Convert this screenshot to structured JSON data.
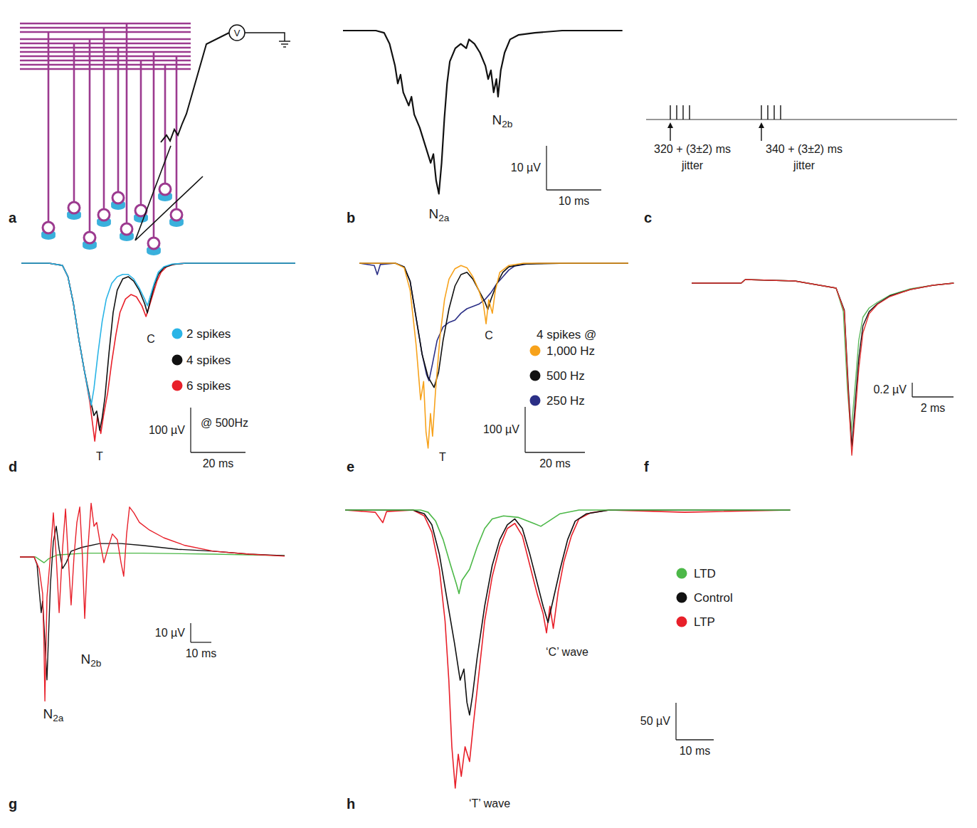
{
  "chart_data": [
    {
      "type": "schematic",
      "panel_label": "a",
      "annotations": [
        "V"
      ]
    },
    {
      "type": "line",
      "panel_label": "b",
      "annotations": [
        "N2a",
        "N2b"
      ],
      "scale_bars": {
        "y": {
          "value": 10,
          "label": "10 µV"
        },
        "x": {
          "value": 10,
          "label": "10 ms"
        }
      },
      "series": [
        {
          "color": "#111111",
          "x": [
            0,
            6,
            7.5,
            8.5,
            9.5,
            10,
            10.5,
            11,
            12,
            12.5,
            13,
            14,
            15,
            16,
            16.5,
            17,
            17.5,
            18,
            18.5,
            19,
            19.5,
            20.5,
            21.5,
            22.5,
            23,
            24,
            25,
            26,
            26.5,
            27,
            27.5,
            28,
            28.3,
            28.8,
            29.5,
            30.5,
            32,
            35,
            40,
            51
          ],
          "values": [
            0,
            0,
            -0.5,
            -3,
            -8,
            -12,
            -10,
            -14,
            -17,
            -15,
            -19,
            -22,
            -26,
            -30,
            -28,
            -34,
            -37,
            -30,
            -20,
            -12,
            -7,
            -4,
            -3,
            -4,
            -2,
            -3,
            -5,
            -8,
            -11,
            -9,
            -14,
            -11,
            -15,
            -9,
            -5,
            -2,
            -1,
            -0.5,
            0,
            0
          ]
        }
      ]
    },
    {
      "type": "spike_train",
      "panel_label": "c",
      "annotations": [
        {
          "text": "320 + (3±2) ms",
          "note": "jitter"
        },
        {
          "text": "340 + (3±2) ms",
          "note": "jitter"
        }
      ]
    },
    {
      "type": "line",
      "panel_label": "d",
      "annotations": [
        "T",
        "C"
      ],
      "legend_note": "@ 500Hz",
      "scale_bars": {
        "y": {
          "value": 100,
          "label": "100 µV"
        },
        "x": {
          "value": 20,
          "label": "20 ms"
        }
      },
      "series": [
        {
          "name": "2 spikes",
          "color": "#2ab4e6",
          "x": [
            0,
            10,
            15,
            17,
            19,
            21,
            23,
            24.5,
            25.5,
            26.5,
            28,
            29.5,
            31,
            33,
            35,
            37,
            39,
            41,
            43,
            45,
            46,
            47,
            48.5,
            50,
            52,
            55,
            60,
            70,
            80,
            100
          ],
          "values": [
            0,
            0,
            -5,
            -30,
            -90,
            -170,
            -240,
            -290,
            -317,
            -280,
            -200,
            -130,
            -80,
            -45,
            -30,
            -25,
            -25,
            -35,
            -55,
            -80,
            -95,
            -75,
            -45,
            -20,
            -8,
            -2,
            0,
            0,
            0,
            0
          ]
        },
        {
          "name": "4 spikes",
          "color": "#111111",
          "x": [
            0,
            10,
            15,
            17,
            19,
            21,
            23,
            25,
            26.5,
            27.5,
            28.6,
            29.5,
            30.5,
            32,
            33.5,
            35,
            37,
            39,
            41,
            43,
            45,
            46,
            47,
            48.5,
            50,
            52,
            55,
            60,
            80,
            100
          ],
          "values": [
            0,
            0,
            -5,
            -30,
            -90,
            -170,
            -240,
            -300,
            -340,
            -330,
            -373,
            -345,
            -300,
            -200,
            -110,
            -60,
            -35,
            -30,
            -40,
            -60,
            -90,
            -111,
            -85,
            -50,
            -25,
            -10,
            -3,
            0,
            0,
            0
          ]
        },
        {
          "name": "6 spikes",
          "color": "#e8202a",
          "x": [
            0,
            10,
            15,
            17,
            19,
            21,
            23,
            25,
            26.8,
            27.8,
            29,
            30,
            31.5,
            33,
            34.5,
            36,
            38,
            40,
            42,
            44,
            45.5,
            46.5,
            48,
            49.5,
            51,
            53,
            56,
            60,
            80,
            100
          ],
          "values": [
            0,
            0,
            -5,
            -30,
            -90,
            -170,
            -240,
            -310,
            -397,
            -340,
            -380,
            -340,
            -290,
            -220,
            -160,
            -110,
            -80,
            -70,
            -75,
            -95,
            -119,
            -100,
            -70,
            -40,
            -20,
            -8,
            -2,
            0,
            0,
            0
          ]
        }
      ]
    },
    {
      "type": "line",
      "panel_label": "e",
      "annotations": [
        "T",
        "C"
      ],
      "legend_title": "4 spikes @",
      "scale_bars": {
        "y": {
          "value": 100,
          "label": "100 µV"
        },
        "x": {
          "value": 20,
          "label": "20 ms"
        }
      },
      "series": [
        {
          "name": "1,000 Hz",
          "color": "#f7a21b",
          "x": [
            0,
            12,
            15,
            17,
            19,
            20.5,
            21.5,
            22.3,
            23,
            23.8,
            24.5,
            25.5,
            27,
            28.5,
            30,
            32,
            34,
            36,
            38,
            40,
            41.5,
            42.4,
            43.3,
            44.5,
            45.5,
            47,
            50,
            55,
            70,
            90
          ],
          "values": [
            0,
            0,
            -10,
            -60,
            -180,
            -300,
            -260,
            -370,
            -406,
            -330,
            -380,
            -280,
            -160,
            -80,
            -35,
            -12,
            -5,
            -10,
            -30,
            -60,
            -90,
            -133,
            -80,
            -110,
            -60,
            -20,
            -5,
            0,
            0,
            0
          ]
        },
        {
          "name": "500 Hz",
          "color": "#111111",
          "x": [
            0,
            12,
            15,
            17,
            19,
            21,
            23,
            25,
            26.5,
            28,
            30,
            32,
            34,
            36,
            38,
            40,
            42,
            43,
            44,
            46,
            48,
            50,
            55,
            70,
            90
          ],
          "values": [
            0,
            0,
            -8,
            -40,
            -120,
            -200,
            -250,
            -273,
            -240,
            -170,
            -100,
            -50,
            -25,
            -20,
            -35,
            -60,
            -85,
            -102,
            -80,
            -45,
            -20,
            -8,
            -2,
            0,
            0
          ]
        },
        {
          "name": "250 Hz",
          "color": "#2b2f86",
          "x": [
            0,
            5,
            6,
            7,
            12,
            15,
            17,
            19,
            21,
            22.5,
            23.3,
            24.5,
            26,
            28,
            30,
            32,
            34,
            36,
            38,
            40,
            42,
            44,
            46,
            48,
            50,
            52,
            56,
            60,
            90
          ],
          "values": [
            0,
            -5,
            -25,
            -3,
            0,
            -8,
            -40,
            -120,
            -200,
            -245,
            -258,
            -220,
            -170,
            -140,
            -130,
            -125,
            -110,
            -100,
            -95,
            -90,
            -80,
            -65,
            -45,
            -30,
            -15,
            -6,
            -2,
            0,
            0
          ]
        }
      ]
    },
    {
      "type": "line",
      "panel_label": "f",
      "scale_bars": {
        "y": {
          "value": 0.2,
          "label": "0.2 µV"
        },
        "x": {
          "value": 2,
          "label": "2 ms"
        }
      },
      "series": [
        {
          "color": "#e03030",
          "x": [
            0,
            2.4,
            2.6,
            5,
            7,
            7.4,
            7.6,
            7.76,
            7.95,
            8.1,
            8.3,
            8.6,
            9,
            9.6,
            10.6,
            11.7,
            12.7
          ],
          "values": [
            0,
            0,
            0.05,
            0.03,
            -0.07,
            -0.4,
            -1.6,
            -2.42,
            -1.75,
            -1.2,
            -0.7,
            -0.43,
            -0.3,
            -0.19,
            -0.09,
            -0.03,
            0
          ]
        },
        {
          "color": "#111111",
          "x": [
            0,
            2.4,
            2.6,
            5,
            7,
            7.4,
            7.6,
            7.76,
            7.95,
            8.1,
            8.3,
            8.6,
            9,
            9.6,
            10.6,
            11.7,
            12.7
          ],
          "values": [
            0,
            0,
            0.05,
            0.03,
            -0.07,
            -0.38,
            -1.5,
            -2.3,
            -1.6,
            -1.05,
            -0.6,
            -0.4,
            -0.29,
            -0.18,
            -0.09,
            -0.03,
            0
          ]
        },
        {
          "color": "#5cb85c",
          "x": [
            0,
            2.4,
            2.6,
            5,
            7,
            7.35,
            7.55,
            7.72,
            7.95,
            8.1,
            8.3,
            8.6,
            9,
            9.6,
            10.6,
            11.7,
            12.7
          ],
          "values": [
            0,
            0,
            0.05,
            0.03,
            -0.07,
            -0.4,
            -1.5,
            -2.12,
            -1.35,
            -0.8,
            -0.48,
            -0.35,
            -0.27,
            -0.17,
            -0.08,
            -0.03,
            0
          ]
        }
      ]
    },
    {
      "type": "line",
      "panel_label": "g",
      "annotations": [
        "N2a",
        "N2b"
      ],
      "scale_bars": {
        "y": {
          "value": 10,
          "label": "10 µV"
        },
        "x": {
          "value": 10,
          "label": "10 ms"
        }
      },
      "series": [
        {
          "color": "#e8202a",
          "x": [
            0,
            6.9,
            9.3,
            11.0,
            11.6,
            12.1,
            13.1,
            14.5,
            16.2,
            17.6,
            19.0,
            20.7,
            22.1,
            23.4,
            24.8,
            26.2,
            27.6,
            29.0,
            30.3,
            31.4,
            32.8,
            34.5,
            35.9,
            37.2,
            38.6,
            40.7,
            42.8,
            44.8,
            47.2,
            49.0,
            50.3,
            51.7,
            53.1,
            55.2,
            57.9,
            62.8,
            69.7,
            80.0,
            93.8,
            111.0,
            128.3
          ],
          "values": [
            0,
            0,
            -6,
            -19,
            -43,
            -75,
            -21,
            -3,
            23,
            0,
            -29,
            5,
            25,
            0,
            -25,
            0,
            18,
            26,
            0,
            -32,
            2,
            28,
            16,
            18,
            9,
            -3,
            5,
            12,
            9,
            -3,
            -10,
            12,
            26,
            23,
            18,
            14,
            10,
            6,
            3,
            1.5,
            0.4
          ]
        },
        {
          "color": "#111111",
          "x": [
            0,
            6.9,
            8.3,
            9.3,
            10.3,
            11.0,
            11.7,
            12.4,
            13.1,
            13.8,
            14.8,
            16.2,
            17.6,
            19.0,
            20.7,
            22.4,
            24.8,
            30.0,
            38.6,
            49.0,
            59.3,
            76.6,
            93.8,
            111.0,
            128.3
          ],
          "values": [
            0,
            0,
            -4,
            -17,
            -29,
            -23,
            -36,
            -50,
            -64,
            -43,
            -14,
            8,
            16,
            4,
            -6,
            -3,
            3,
            5,
            7,
            7,
            6,
            4,
            3,
            1.5,
            0.7
          ]
        },
        {
          "color": "#4cb848",
          "x": [
            0,
            7.6,
            10.3,
            11.7,
            13.8,
            17.9,
            31.7,
            59.3,
            93.8,
            128.3
          ],
          "values": [
            0,
            0,
            -2,
            -3,
            -1,
            1,
            2,
            2,
            1.5,
            0.7
          ]
        }
      ]
    },
    {
      "type": "line",
      "panel_label": "h",
      "annotations": [
        "‘C’ wave",
        "‘T’ wave"
      ],
      "scale_bars": {
        "y": {
          "value": 50,
          "label": "50 µV"
        },
        "x": {
          "value": 10,
          "label": "10 ms"
        }
      },
      "series": [
        {
          "name": "LTD",
          "color": "#4cb848",
          "x": [
            0,
            20,
            22,
            24,
            26,
            28,
            29.5,
            30.2,
            31,
            33,
            35,
            37,
            39,
            42,
            46,
            50,
            51.9,
            54,
            57,
            62,
            118
          ],
          "values": [
            0,
            0,
            -3,
            -15,
            -40,
            -75,
            -100,
            -113,
            -95,
            -80,
            -50,
            -25,
            -12,
            -8,
            -10,
            -18,
            -22,
            -15,
            -5,
            0,
            0
          ]
        },
        {
          "name": "Control",
          "color": "#111111",
          "x": [
            0,
            18,
            21,
            23,
            25,
            27,
            29,
            30.5,
            31.5,
            32.3,
            33,
            33.8,
            35,
            37,
            39,
            41,
            43,
            45,
            47,
            49,
            51,
            52.5,
            53.8,
            55,
            57,
            59,
            61,
            64,
            70,
            90,
            118
          ],
          "values": [
            0,
            0,
            -5,
            -20,
            -60,
            -120,
            -180,
            -230,
            -215,
            -260,
            -277,
            -250,
            -200,
            -130,
            -75,
            -40,
            -20,
            -12,
            -25,
            -60,
            -100,
            -130,
            -152,
            -125,
            -80,
            -40,
            -15,
            -5,
            0,
            0,
            0
          ]
        },
        {
          "name": "LTP",
          "color": "#e8202a",
          "x": [
            0,
            8,
            10,
            11,
            18,
            21,
            23,
            25,
            26.5,
            27.5,
            28.3,
            29.2,
            30,
            30.8,
            31.8,
            33,
            34,
            35.5,
            37,
            39,
            41,
            43,
            45,
            47,
            49,
            51,
            52.5,
            53.4,
            54.3,
            55.2,
            56.5,
            58,
            60,
            62,
            65,
            70,
            90,
            118
          ],
          "values": [
            0,
            -3,
            -17,
            -2,
            0,
            -8,
            -30,
            -80,
            -150,
            -230,
            -320,
            -376,
            -330,
            -360,
            -320,
            -340,
            -290,
            -220,
            -150,
            -90,
            -50,
            -25,
            -18,
            -35,
            -75,
            -115,
            -140,
            -166,
            -130,
            -160,
            -110,
            -70,
            -35,
            -12,
            -4,
            0,
            -3,
            0
          ]
        }
      ]
    }
  ]
}
